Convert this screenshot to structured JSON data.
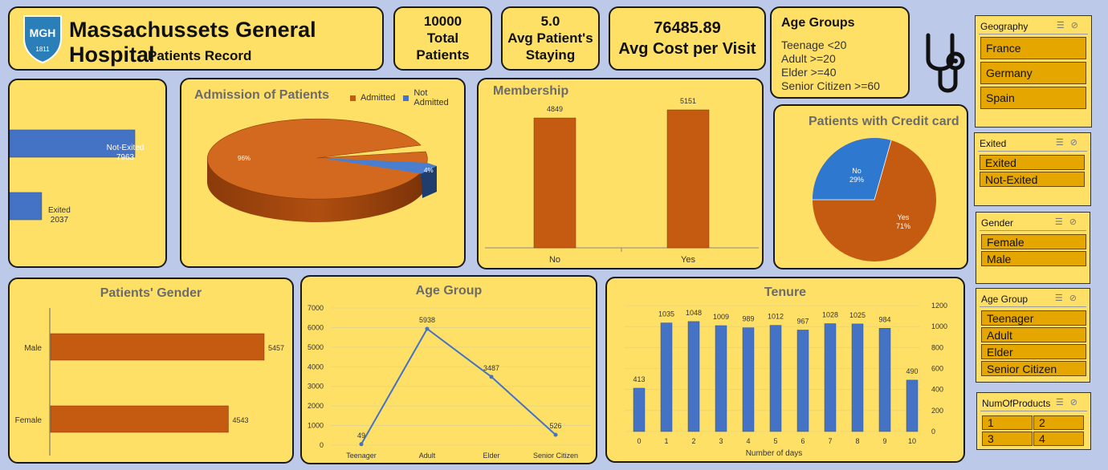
{
  "header": {
    "logo_text": "MGH",
    "logo_year": "1811",
    "title": "Massachussets General Hospital",
    "subtitle": "Patients Record"
  },
  "kpis": {
    "total_value": "10000",
    "total_label": "Total Patients",
    "stay_value": "5.0",
    "stay_label": "Avg Patient's Staying",
    "cost_value": "76485.89",
    "cost_label": "Avg Cost per Visit"
  },
  "age_groups_box": {
    "title": "Age Groups",
    "lines": [
      "Teenage <20",
      "Adult >=20",
      "Elder >=40",
      "Senior Citizen >=60"
    ]
  },
  "colors": {
    "orange": "#c55a11",
    "blue": "#4472c4",
    "card": "#ffe066",
    "slicer_item": "#e5a600"
  },
  "exited_chart": {
    "bars": [
      {
        "label": "Not-Exited",
        "value": 7963
      },
      {
        "label": "Exited",
        "value": 2037
      }
    ]
  },
  "admission_chart": {
    "title": "Admission of Patients",
    "legend": [
      "Admitted",
      "Not Admitted"
    ],
    "admitted_pct": "96%",
    "not_admitted_pct": "4%"
  },
  "membership_chart": {
    "title": "Membership",
    "categories": [
      "No",
      "Yes"
    ],
    "values": [
      4849,
      5151
    ]
  },
  "credit_chart": {
    "title": "Patients with Credit card",
    "no_label": "No",
    "no_pct": "29%",
    "yes_label": "Yes",
    "yes_pct": "71%"
  },
  "gender_chart": {
    "title": "Patients' Gender",
    "categories": [
      "Male",
      "Female"
    ],
    "values": [
      5457,
      4543
    ]
  },
  "age_chart": {
    "title": "Age Group",
    "categories": [
      "Teenager",
      "Adult",
      "Elder",
      "Senior Citizen"
    ],
    "values": [
      49,
      5938,
      3487,
      526
    ],
    "yticks": [
      "7000",
      "6000",
      "5000",
      "4000",
      "3000",
      "2000",
      "1000",
      "0"
    ]
  },
  "tenure_chart": {
    "title": "Tenure",
    "xlabel": "Number of days",
    "categories": [
      "0",
      "1",
      "2",
      "3",
      "4",
      "5",
      "6",
      "7",
      "8",
      "9",
      "10"
    ],
    "values": [
      413,
      1035,
      1048,
      1009,
      989,
      1012,
      967,
      1028,
      1025,
      984,
      490
    ],
    "yticks": [
      "1200",
      "1000",
      "800",
      "600",
      "400",
      "200",
      "0"
    ]
  },
  "chart_data": [
    {
      "type": "bar",
      "orientation": "horizontal",
      "categories": [
        "Not-Exited",
        "Exited"
      ],
      "values": [
        7963,
        2037
      ]
    },
    {
      "type": "pie",
      "title": "Admission of Patients",
      "categories": [
        "Admitted",
        "Not Admitted"
      ],
      "values": [
        96,
        4
      ]
    },
    {
      "type": "bar",
      "title": "Membership",
      "categories": [
        "No",
        "Yes"
      ],
      "values": [
        4849,
        5151
      ]
    },
    {
      "type": "pie",
      "title": "Patients with Credit card",
      "categories": [
        "No",
        "Yes"
      ],
      "values": [
        29,
        71
      ]
    },
    {
      "type": "bar",
      "orientation": "horizontal",
      "title": "Patients' Gender",
      "categories": [
        "Male",
        "Female"
      ],
      "values": [
        5457,
        4543
      ]
    },
    {
      "type": "line",
      "title": "Age Group",
      "categories": [
        "Teenager",
        "Adult",
        "Elder",
        "Senior Citizen"
      ],
      "values": [
        49,
        5938,
        3487,
        526
      ],
      "ylim": [
        0,
        7000
      ]
    },
    {
      "type": "bar",
      "title": "Tenure",
      "xlabel": "Number of days",
      "categories": [
        "0",
        "1",
        "2",
        "3",
        "4",
        "5",
        "6",
        "7",
        "8",
        "9",
        "10"
      ],
      "values": [
        413,
        1035,
        1048,
        1009,
        989,
        1012,
        967,
        1028,
        1025,
        984,
        490
      ],
      "ylim": [
        0,
        1200
      ]
    }
  ],
  "slicers": {
    "geography": {
      "title": "Geography",
      "items": [
        "France",
        "Germany",
        "Spain"
      ]
    },
    "exited": {
      "title": "Exited",
      "items": [
        "Exited",
        "Not-Exited"
      ]
    },
    "gender": {
      "title": "Gender",
      "items": [
        "Female",
        "Male"
      ]
    },
    "age_group": {
      "title": "Age Group",
      "items": [
        "Teenager",
        "Adult",
        "Elder",
        "Senior Citizen"
      ]
    },
    "products": {
      "title": "NumOfProducts",
      "items": [
        "1",
        "2",
        "3",
        "4"
      ]
    }
  },
  "slicer_icons": [
    "multi-select-icon",
    "clear-filter-icon"
  ],
  "decor_icon": "stethoscope-icon"
}
